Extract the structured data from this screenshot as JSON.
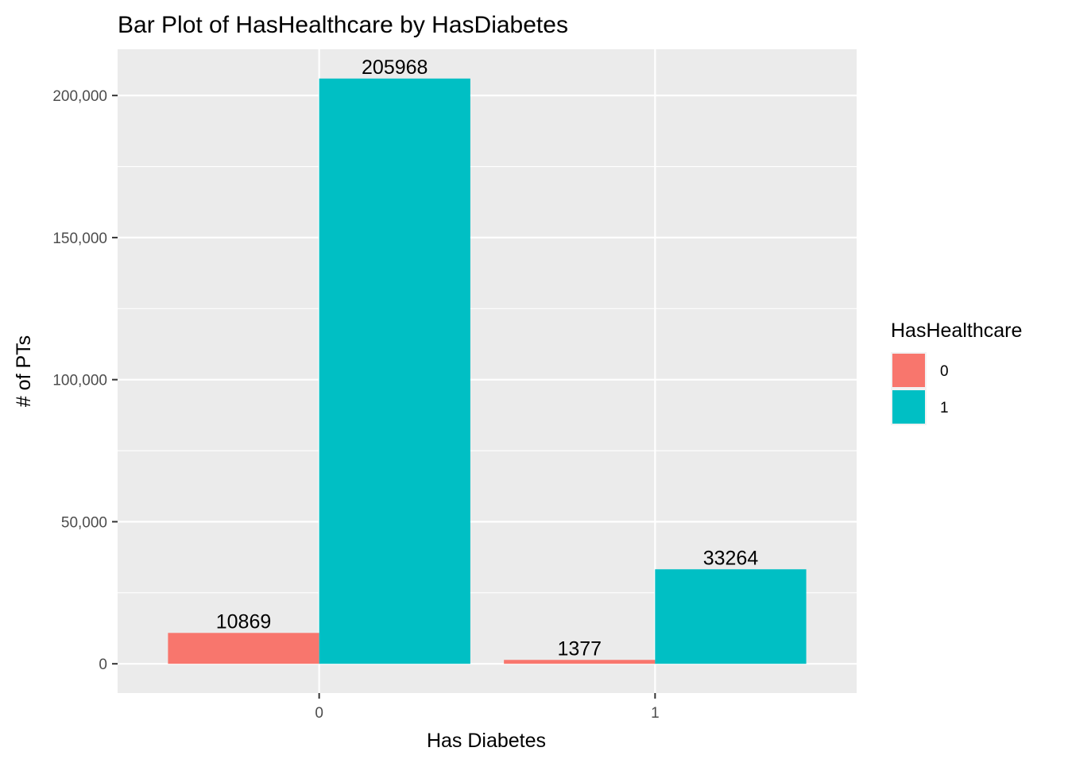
{
  "chart_data": {
    "type": "bar",
    "title": "Bar Plot of HasHealthcare by HasDiabetes",
    "xlabel": "Has Diabetes",
    "ylabel": "# of PTs",
    "categories": [
      "0",
      "1"
    ],
    "series": [
      {
        "name": "0",
        "values": [
          10869,
          1377
        ],
        "color": "#F8766D"
      },
      {
        "name": "1",
        "values": [
          205968,
          33264
        ],
        "color": "#00BFC4"
      }
    ],
    "data_labels": [
      [
        "10869",
        "1377"
      ],
      [
        "205968",
        "33264"
      ]
    ],
    "yticks": [
      0,
      50000,
      100000,
      150000,
      200000
    ],
    "ytick_labels": [
      "0",
      "50,000",
      "100,000",
      "150,000",
      "200,000"
    ],
    "ylim": [
      -10298,
      216266
    ],
    "grid": true,
    "legend": {
      "title": "HasHealthcare",
      "position": "right",
      "labels": [
        "0",
        "1"
      ]
    },
    "colors": {
      "panel_background": "#EBEBEB",
      "grid": "#FFFFFF",
      "tick_text": "#4D4D4D",
      "tick_mark": "#333333"
    }
  }
}
